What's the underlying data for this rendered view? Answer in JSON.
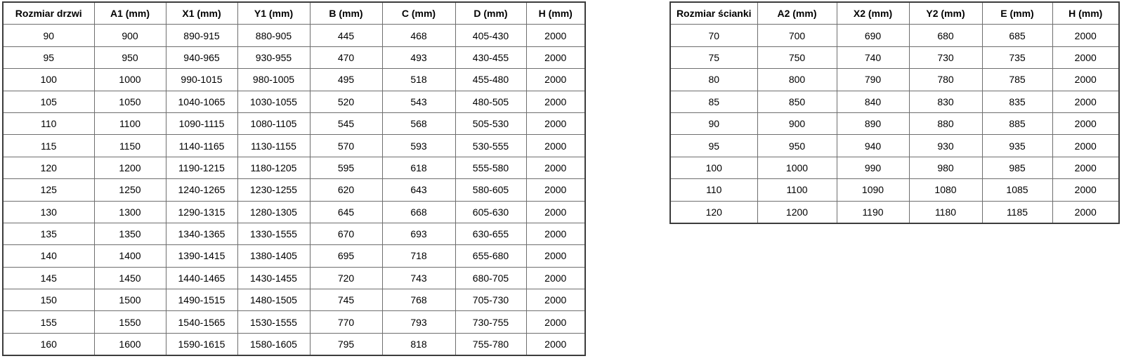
{
  "door_table": {
    "headers": [
      "Rozmiar drzwi",
      "A1 (mm)",
      "X1 (mm)",
      "Y1 (mm)",
      "B (mm)",
      "C (mm)",
      "D (mm)",
      "H (mm)"
    ],
    "rows": [
      [
        "90",
        "900",
        "890-915",
        "880-905",
        "445",
        "468",
        "405-430",
        "2000"
      ],
      [
        "95",
        "950",
        "940-965",
        "930-955",
        "470",
        "493",
        "430-455",
        "2000"
      ],
      [
        "100",
        "1000",
        "990-1015",
        "980-1005",
        "495",
        "518",
        "455-480",
        "2000"
      ],
      [
        "105",
        "1050",
        "1040-1065",
        "1030-1055",
        "520",
        "543",
        "480-505",
        "2000"
      ],
      [
        "110",
        "1100",
        "1090-1115",
        "1080-1105",
        "545",
        "568",
        "505-530",
        "2000"
      ],
      [
        "115",
        "1150",
        "1140-1165",
        "1130-1155",
        "570",
        "593",
        "530-555",
        "2000"
      ],
      [
        "120",
        "1200",
        "1190-1215",
        "1180-1205",
        "595",
        "618",
        "555-580",
        "2000"
      ],
      [
        "125",
        "1250",
        "1240-1265",
        "1230-1255",
        "620",
        "643",
        "580-605",
        "2000"
      ],
      [
        "130",
        "1300",
        "1290-1315",
        "1280-1305",
        "645",
        "668",
        "605-630",
        "2000"
      ],
      [
        "135",
        "1350",
        "1340-1365",
        "1330-1555",
        "670",
        "693",
        "630-655",
        "2000"
      ],
      [
        "140",
        "1400",
        "1390-1415",
        "1380-1405",
        "695",
        "718",
        "655-680",
        "2000"
      ],
      [
        "145",
        "1450",
        "1440-1465",
        "1430-1455",
        "720",
        "743",
        "680-705",
        "2000"
      ],
      [
        "150",
        "1500",
        "1490-1515",
        "1480-1505",
        "745",
        "768",
        "705-730",
        "2000"
      ],
      [
        "155",
        "1550",
        "1540-1565",
        "1530-1555",
        "770",
        "793",
        "730-755",
        "2000"
      ],
      [
        "160",
        "1600",
        "1590-1615",
        "1580-1605",
        "795",
        "818",
        "755-780",
        "2000"
      ]
    ]
  },
  "wall_table": {
    "headers": [
      "Rozmiar ścianki",
      "A2 (mm)",
      "X2 (mm)",
      "Y2 (mm)",
      "E (mm)",
      "H (mm)"
    ],
    "rows": [
      [
        "70",
        "700",
        "690",
        "680",
        "685",
        "2000"
      ],
      [
        "75",
        "750",
        "740",
        "730",
        "735",
        "2000"
      ],
      [
        "80",
        "800",
        "790",
        "780",
        "785",
        "2000"
      ],
      [
        "85",
        "850",
        "840",
        "830",
        "835",
        "2000"
      ],
      [
        "90",
        "900",
        "890",
        "880",
        "885",
        "2000"
      ],
      [
        "95",
        "950",
        "940",
        "930",
        "935",
        "2000"
      ],
      [
        "100",
        "1000",
        "990",
        "980",
        "985",
        "2000"
      ],
      [
        "110",
        "1100",
        "1090",
        "1080",
        "1085",
        "2000"
      ],
      [
        "120",
        "1200",
        "1190",
        "1180",
        "1185",
        "2000"
      ]
    ]
  },
  "colors": {
    "background": "#ffffff",
    "text": "#000000",
    "border_inner": "#6e6e6e",
    "border_outer": "#3c3c3c"
  }
}
